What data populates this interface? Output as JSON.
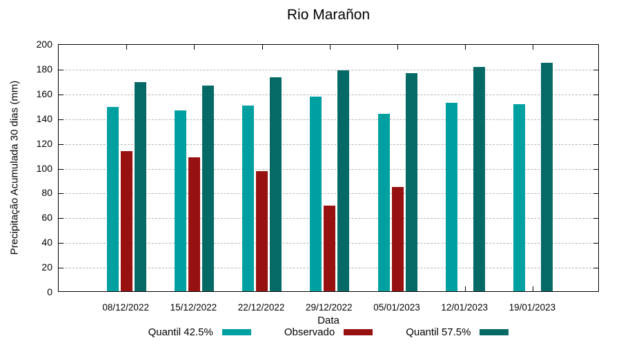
{
  "chart_data": {
    "type": "bar",
    "title": "Rio Marañon",
    "xlabel": "Data",
    "ylabel": "Precipitação Acumulada 30 dias (mm)",
    "ylim": [
      0,
      200
    ],
    "ytick_step": 20,
    "grid": "horizontal dashed",
    "legend_position": "bottom",
    "categories": [
      "08/12/2022",
      "15/12/2022",
      "22/12/2022",
      "29/12/2022",
      "05/01/2023",
      "12/01/2023",
      "19/01/2023"
    ],
    "series": [
      {
        "name": "Quantil 42.5%",
        "color": "#00A0A0",
        "values": [
          149,
          146,
          150,
          157,
          143,
          152,
          151
        ]
      },
      {
        "name": "Observado",
        "color": "#961110",
        "values": [
          113,
          108,
          97,
          69,
          84,
          null,
          null
        ]
      },
      {
        "name": "Quantil 57.5%",
        "color": "#056A66",
        "values": [
          169,
          166,
          172.5,
          178.5,
          176,
          181,
          184.5
        ]
      }
    ],
    "axis_color": "#000000",
    "grid_color": "#b5b5b5"
  }
}
